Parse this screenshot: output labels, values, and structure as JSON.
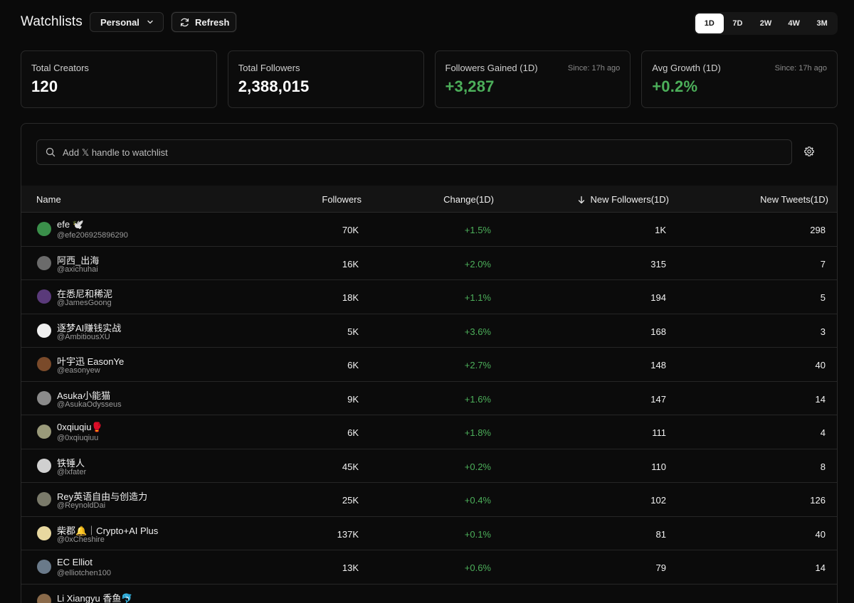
{
  "header": {
    "title": "Watchlists",
    "list_selector": "Personal",
    "refresh_label": "Refresh",
    "ranges": [
      "1D",
      "7D",
      "2W",
      "4W",
      "3M"
    ],
    "active_range": "1D"
  },
  "stats": [
    {
      "label": "Total Creators",
      "value": "120",
      "since": ""
    },
    {
      "label": "Total Followers",
      "value": "2,388,015",
      "since": ""
    },
    {
      "label": "Followers Gained (1D)",
      "value": "+3,287",
      "since": "Since: 17h ago"
    },
    {
      "label": "Avg Growth (1D)",
      "value": "+0.2%",
      "since": "Since: 17h ago"
    }
  ],
  "search": {
    "placeholder": "Add 𝕏 handle to watchlist"
  },
  "table": {
    "columns": {
      "name": "Name",
      "followers": "Followers",
      "change": "Change(1D)",
      "new_followers": "New Followers(1D)",
      "new_tweets": "New Tweets(1D)"
    },
    "rows": [
      {
        "name": "efe 🕊️",
        "handle": "@efe206925896290",
        "followers": "70K",
        "change": "+1.5%",
        "new_followers": "1K",
        "new_tweets": "298",
        "avatar_color": "#3a8f4a"
      },
      {
        "name": "阿西_出海",
        "handle": "@axichuhai",
        "followers": "16K",
        "change": "+2.0%",
        "new_followers": "315",
        "new_tweets": "7",
        "avatar_color": "#6b6b6b"
      },
      {
        "name": "在悉尼和稀泥",
        "handle": "@JamesGoong",
        "followers": "18K",
        "change": "+1.1%",
        "new_followers": "194",
        "new_tweets": "5",
        "avatar_color": "#5a3a7a"
      },
      {
        "name": "逐梦AI赚钱实战",
        "handle": "@AmbitiousXU",
        "followers": "5K",
        "change": "+3.6%",
        "new_followers": "168",
        "new_tweets": "3",
        "avatar_color": "#f0f0f0"
      },
      {
        "name": "叶宇迅 EasonYe",
        "handle": "@easonyew",
        "followers": "6K",
        "change": "+2.7%",
        "new_followers": "148",
        "new_tweets": "40",
        "avatar_color": "#7a4a2a"
      },
      {
        "name": "Asuka小能猫",
        "handle": "@AsukaOdysseus",
        "followers": "9K",
        "change": "+1.6%",
        "new_followers": "147",
        "new_tweets": "14",
        "avatar_color": "#8a8a8a"
      },
      {
        "name": "0xqiuqiu🥊",
        "handle": "@0xqiuqiuu",
        "followers": "6K",
        "change": "+1.8%",
        "new_followers": "111",
        "new_tweets": "4",
        "avatar_color": "#9a9a7a"
      },
      {
        "name": "铁锤人",
        "handle": "@lxfater",
        "followers": "45K",
        "change": "+0.2%",
        "new_followers": "110",
        "new_tweets": "8",
        "avatar_color": "#d0d0d0"
      },
      {
        "name": "Rey英语自由与创造力",
        "handle": "@ReynoldDai",
        "followers": "25K",
        "change": "+0.4%",
        "new_followers": "102",
        "new_tweets": "126",
        "avatar_color": "#7a7a6a"
      },
      {
        "name": "柴郡🔔｜Crypto+AI Plus",
        "handle": "@0xCheshire",
        "followers": "137K",
        "change": "+0.1%",
        "new_followers": "81",
        "new_tweets": "40",
        "avatar_color": "#e8d8a0"
      },
      {
        "name": "EC Elliot",
        "handle": "@elliotchen100",
        "followers": "13K",
        "change": "+0.6%",
        "new_followers": "79",
        "new_tweets": "14",
        "avatar_color": "#6a7a8a"
      },
      {
        "name": "Li Xiangyu 香鱼🐬",
        "handle": "",
        "followers": "",
        "change": "",
        "new_followers": "",
        "new_tweets": "",
        "avatar_color": "#8a6a4a"
      }
    ]
  },
  "icons": {
    "dropdown": "chevron-down-icon",
    "refresh": "refresh-icon",
    "search": "search-icon",
    "settings": "gear-icon",
    "sort": "arrow-down-icon"
  }
}
